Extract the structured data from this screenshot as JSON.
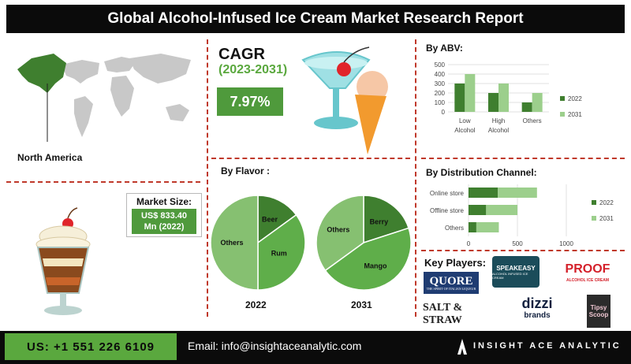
{
  "header": {
    "title": "Global Alcohol-Infused Ice Cream Market Research Report"
  },
  "region": {
    "label": "North America"
  },
  "cagr": {
    "title": "CAGR",
    "period": "(2023-2031)",
    "value": "7.97%"
  },
  "market_size": {
    "title": "Market Size:",
    "line1": "US$ 833.40",
    "line2": "Mn (2022)"
  },
  "colors": {
    "dark_green": "#3f7f2f",
    "light_green": "#9ccf8c",
    "accent_green": "#4f9a3c",
    "mid_green": "#5fae4a",
    "pale_green": "#86c071"
  },
  "chart_data": [
    {
      "type": "bar",
      "title": "By ABV:",
      "categories": [
        "Low Alcohol",
        "High Alcohol",
        "Others"
      ],
      "category_lines": [
        [
          "Low",
          "Alcohol"
        ],
        [
          "High",
          "Alcohol"
        ],
        [
          "Others"
        ]
      ],
      "series": [
        {
          "name": "2022",
          "values": [
            300,
            200,
            100
          ]
        },
        {
          "name": "2031",
          "values": [
            400,
            300,
            200
          ]
        }
      ],
      "ylim": [
        0,
        500
      ],
      "yticks": [
        "0",
        "100",
        "200",
        "300",
        "400",
        "500"
      ],
      "legend": "right"
    },
    {
      "type": "bar",
      "orientation": "horizontal",
      "stacked": true,
      "title": "By Distribution Channel:",
      "categories": [
        "Online store",
        "Offline store",
        "Others"
      ],
      "series": [
        {
          "name": "2022",
          "values": [
            300,
            180,
            80
          ]
        },
        {
          "name": "2031",
          "values": [
            400,
            320,
            230
          ]
        }
      ],
      "xlim": [
        0,
        1000
      ],
      "xticks": [
        "0",
        "500",
        "1000"
      ],
      "legend": "right"
    },
    {
      "type": "pie",
      "title": "By Flavor :",
      "year": "2022",
      "labels": [
        "Beer",
        "Rum",
        "Others"
      ],
      "values": [
        15,
        35,
        50
      ]
    },
    {
      "type": "pie",
      "year": "2031",
      "labels": [
        "Berry",
        "Mango",
        "Others"
      ],
      "values": [
        20,
        45,
        35
      ]
    }
  ],
  "key_players": {
    "title": "Key Players:",
    "logos": [
      {
        "name": "QUORE",
        "tagline": "THE SPIRIT OF ITALIAN LIQUEUR"
      },
      {
        "name": "SPEAKEASY",
        "tagline": "ALCOHOL INFUSED ICE CREAM"
      },
      {
        "name": "PROOF",
        "tagline": "ALCOHOL ICE CREAM"
      },
      {
        "name": "SALT & STRAW"
      },
      {
        "name": "dizzi",
        "tagline": "brands"
      },
      {
        "name": "Tipsy Scoop"
      }
    ]
  },
  "footer": {
    "phone": "US: +1 551 226 6109",
    "email": "Email: info@insightaceanalytic.com",
    "brand": "INSIGHT ACE ANALYTIC"
  }
}
